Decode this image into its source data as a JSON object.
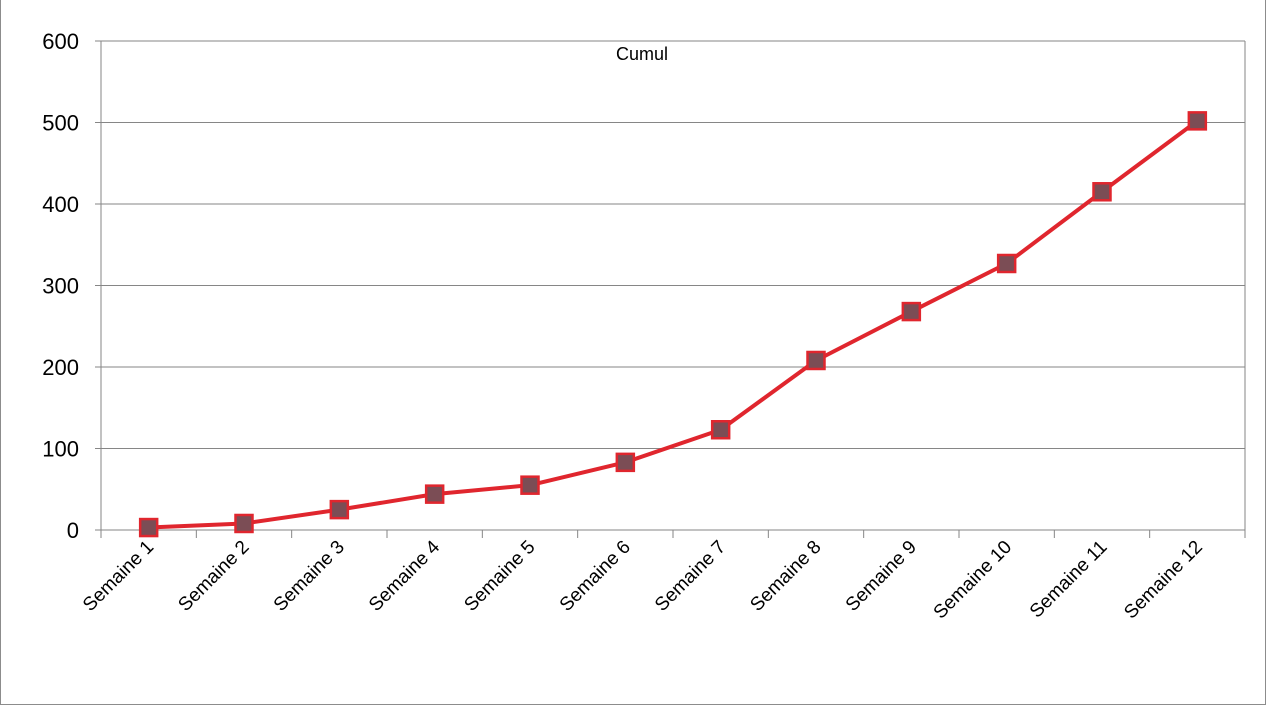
{
  "chart_data": {
    "type": "line",
    "title": "Cumul",
    "xlabel": "",
    "ylabel": "",
    "categories": [
      "Semaine 1",
      "Semaine 2",
      "Semaine 3",
      "Semaine 4",
      "Semaine 5",
      "Semaine 6",
      "Semaine 7",
      "Semaine 8",
      "Semaine 9",
      "Semaine 10",
      "Semaine 11",
      "Semaine 12"
    ],
    "series": [
      {
        "values": [
          3,
          8,
          25,
          44,
          55,
          83,
          123,
          208,
          268,
          327,
          415,
          502
        ]
      }
    ],
    "ylim": [
      0,
      600
    ],
    "yticks": [
      0,
      100,
      200,
      300,
      400,
      500,
      600
    ],
    "grid": true,
    "legend": "none",
    "colors": {
      "line": "#e0262e",
      "marker_fill": "#7b4d55",
      "marker_edge": "#e0262e",
      "grid": "#868686",
      "axis": "#868686"
    }
  }
}
